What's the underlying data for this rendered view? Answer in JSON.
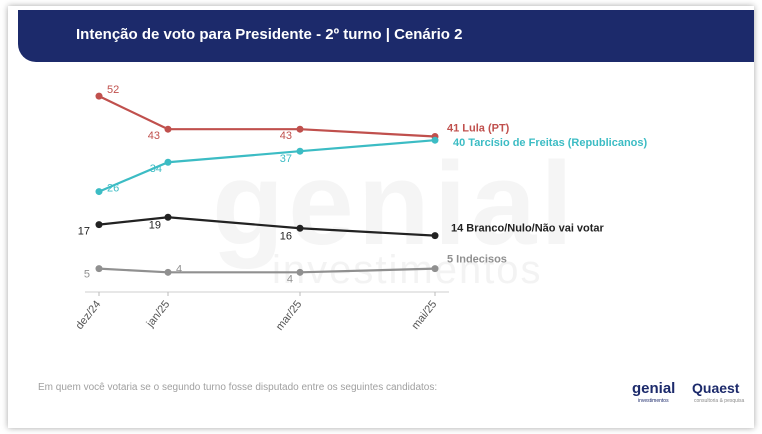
{
  "header": {
    "title": "Intenção de voto para Presidente - 2º turno | Cenário 2"
  },
  "watermark": {
    "big": "genial",
    "small": "investimentos"
  },
  "footer": {
    "note": "Em quem você votaria se o segundo turno fosse disputado entre os seguintes candidatos:",
    "logo_genial": "genial",
    "logo_genial_sub": "investimentos",
    "logo_quaest": "Quaest"
  },
  "chart_data": {
    "type": "line",
    "title": "Intenção de voto para Presidente - 2º turno | Cenário 2",
    "categories": [
      "dez/24",
      "jan/25",
      "mar/25",
      "mai/25"
    ],
    "ylim": [
      0,
      60
    ],
    "grid": false,
    "series": [
      {
        "name": "Lula (PT)",
        "label": "41 Lula (PT)",
        "color": "#c0504d",
        "values": [
          52,
          43,
          43,
          41
        ]
      },
      {
        "name": "Tarcísio de Freitas (Republicanos)",
        "label": "40 Tarcísio de Freitas (Republicanos)",
        "color": "#3cbcc4",
        "values": [
          26,
          34,
          37,
          40
        ]
      },
      {
        "name": "Branco/Nulo/Não vai votar",
        "label": "14 Branco/Nulo/Não vai votar",
        "color": "#222222",
        "values": [
          17,
          19,
          16,
          14
        ]
      },
      {
        "name": "Indecisos",
        "label": "5 Indecisos",
        "color": "#909090",
        "values": [
          5,
          4,
          4,
          5
        ]
      }
    ]
  }
}
